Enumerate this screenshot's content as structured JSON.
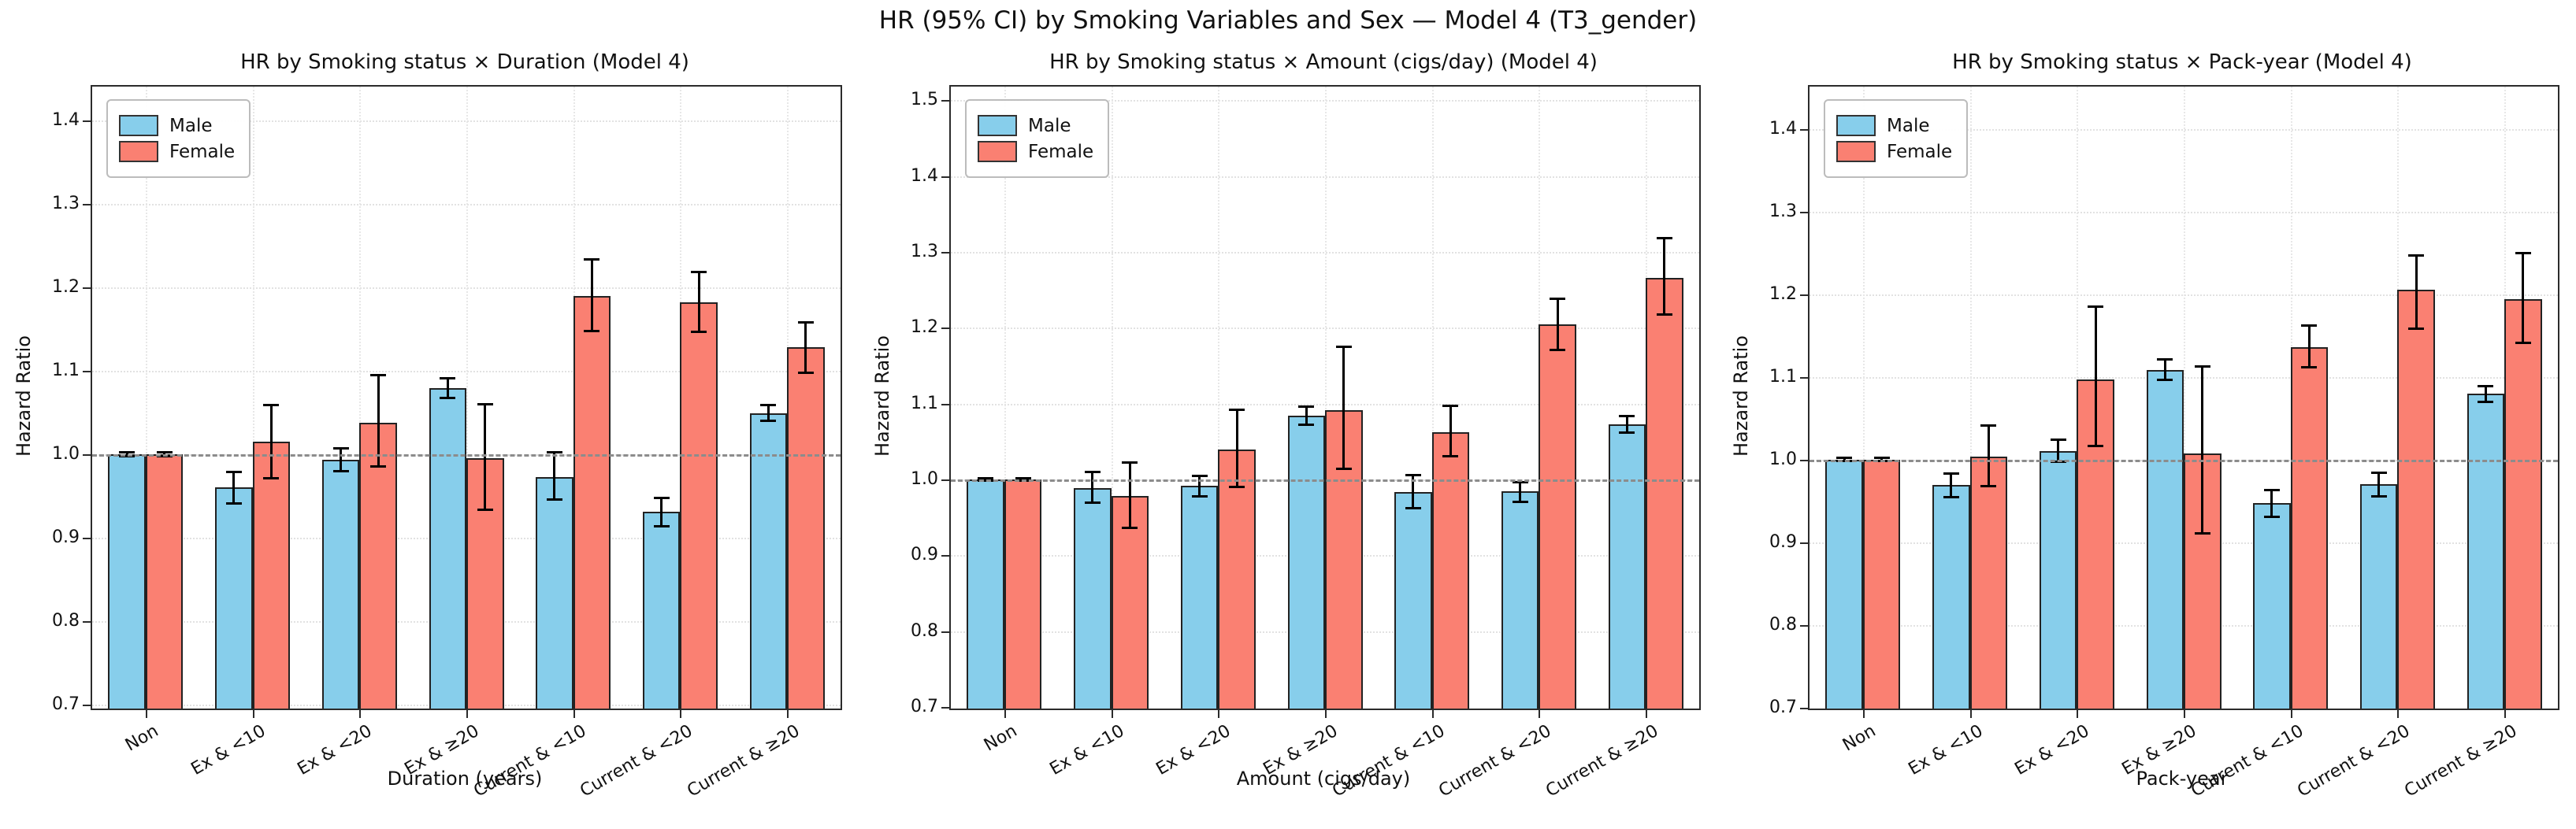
{
  "figure": {
    "title": "HR (95% CI) by Smoking Variables and Sex — Model 4 (T3_gender)"
  },
  "legend": {
    "male": "Male",
    "female": "Female"
  },
  "colors": {
    "male": "#87CEEB",
    "female": "#FA8072",
    "bar_edge": "#222222",
    "error_bar": "#000000",
    "refline": "#8c8c8c",
    "grid": "#e2e2e2"
  },
  "chart_data": [
    {
      "type": "bar",
      "title": "HR by Smoking status × Duration (Model 4)",
      "xlabel": "Duration (years)",
      "ylabel": "Hazard Ratio",
      "categories": [
        "Non",
        "Ex & <10",
        "Ex & <20",
        "Ex & ≥20",
        "Current & <10",
        "Current & <20",
        "Current & ≥20"
      ],
      "yticks": [
        0.7,
        0.8,
        0.9,
        1.0,
        1.1,
        1.2,
        1.3,
        1.4
      ],
      "ylim": [
        0.695,
        1.441
      ],
      "refline": 1.0,
      "grid": true,
      "legend_position": "upper-left",
      "series": [
        {
          "name": "Male",
          "values": [
            1.0,
            0.96,
            0.993,
            1.079,
            0.973,
            0.931,
            1.049
          ],
          "ci_low": [
            0.998,
            0.941,
            0.98,
            1.068,
            0.946,
            0.914,
            1.04
          ],
          "ci_high": [
            1.002,
            0.979,
            1.007,
            1.091,
            1.002,
            0.948,
            1.059
          ]
        },
        {
          "name": "Female",
          "values": [
            1.0,
            1.015,
            1.038,
            0.995,
            1.19,
            1.182,
            1.128
          ],
          "ci_low": [
            0.998,
            0.971,
            0.985,
            0.933,
            1.148,
            1.147,
            1.098
          ],
          "ci_high": [
            1.002,
            1.059,
            1.095,
            1.06,
            1.234,
            1.219,
            1.158
          ]
        }
      ]
    },
    {
      "type": "bar",
      "title": "HR by Smoking status × Amount (cigs/day) (Model 4)",
      "xlabel": "Amount (cigs/day)",
      "ylabel": "Hazard Ratio",
      "categories": [
        "Non",
        "Ex & <10",
        "Ex & <20",
        "Ex & ≥20",
        "Current & <10",
        "Current & <20",
        "Current & ≥20"
      ],
      "yticks": [
        0.7,
        0.8,
        0.9,
        1.0,
        1.1,
        1.2,
        1.3,
        1.4,
        1.5
      ],
      "ylim": [
        0.698,
        1.518
      ],
      "refline": 1.0,
      "grid": true,
      "legend_position": "upper-left",
      "series": [
        {
          "name": "Male",
          "values": [
            1.0,
            0.989,
            0.992,
            1.084,
            0.983,
            0.984,
            1.073
          ],
          "ci_low": [
            0.998,
            0.969,
            0.978,
            1.072,
            0.962,
            0.97,
            1.062
          ],
          "ci_high": [
            1.002,
            1.01,
            1.005,
            1.096,
            1.006,
            0.996,
            1.084
          ]
        },
        {
          "name": "Female",
          "values": [
            1.0,
            0.978,
            1.039,
            1.091,
            1.062,
            1.205,
            1.266
          ],
          "ci_low": [
            0.998,
            0.936,
            0.99,
            1.014,
            1.031,
            1.171,
            1.217
          ],
          "ci_high": [
            1.002,
            1.022,
            1.092,
            1.175,
            1.097,
            1.238,
            1.318
          ]
        }
      ]
    },
    {
      "type": "bar",
      "title": "HR by Smoking status × Pack-year (Model 4)",
      "xlabel": "Pack-year",
      "ylabel": "Hazard Ratio",
      "categories": [
        "Non",
        "Ex & <10",
        "Ex & <20",
        "Ex & ≥20",
        "Current & <10",
        "Current & <20",
        "Current & ≥20"
      ],
      "yticks": [
        0.7,
        0.8,
        0.9,
        1.0,
        1.1,
        1.2,
        1.3,
        1.4
      ],
      "ylim": [
        0.699,
        1.451
      ],
      "refline": 1.0,
      "grid": true,
      "legend_position": "upper-left",
      "series": [
        {
          "name": "Male",
          "values": [
            1.0,
            0.969,
            1.01,
            1.108,
            0.947,
            0.97,
            1.08
          ],
          "ci_low": [
            0.998,
            0.955,
            0.997,
            1.096,
            0.931,
            0.956,
            1.07
          ],
          "ci_high": [
            1.002,
            0.983,
            1.024,
            1.121,
            0.963,
            0.984,
            1.089
          ]
        },
        {
          "name": "Female",
          "values": [
            1.0,
            1.004,
            1.097,
            1.007,
            1.136,
            1.205,
            1.194
          ],
          "ci_low": [
            0.998,
            0.968,
            1.016,
            0.911,
            1.112,
            1.158,
            1.141
          ],
          "ci_high": [
            1.002,
            1.041,
            1.185,
            1.113,
            1.162,
            1.247,
            1.25
          ]
        }
      ]
    }
  ]
}
